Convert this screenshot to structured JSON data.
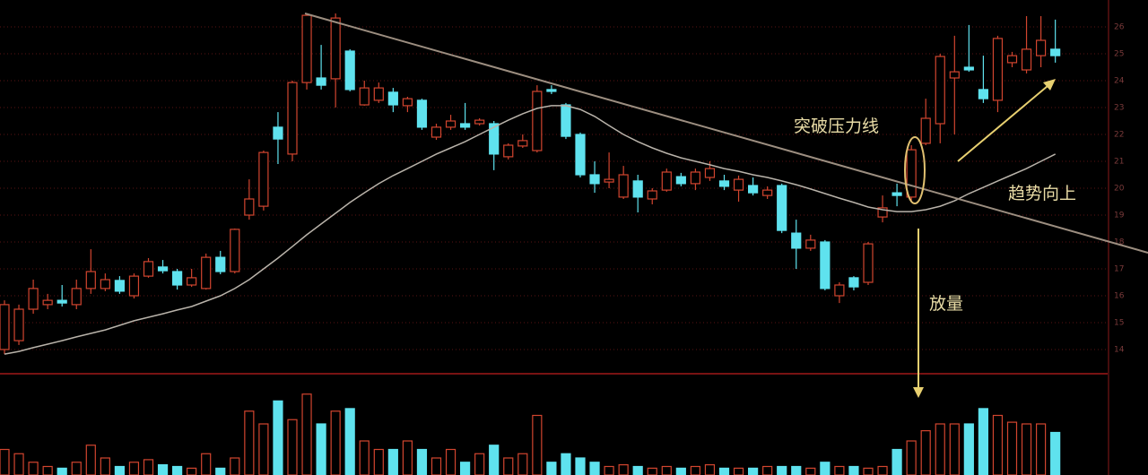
{
  "chart_data": {
    "type": "candlestick",
    "open": [
      14,
      14.33,
      15.5,
      15.67,
      15.83,
      15.67,
      16.27,
      16.27,
      16.57,
      16,
      16.73,
      17.07,
      16.9,
      16.4,
      16.27,
      17.43,
      16.9,
      19,
      19.33,
      22.27,
      21.27,
      23.93,
      24.1,
      24.07,
      25.1,
      23.1,
      23.27,
      23.57,
      23.07,
      23.27,
      21.9,
      22.27,
      22.4,
      22.4,
      22.4,
      21.17,
      21.57,
      21.4,
      23.67,
      23.1,
      22,
      20.5,
      20.23,
      19.67,
      20.27,
      19.6,
      19.93,
      20.43,
      20.17,
      20.4,
      20.27,
      19.93,
      20.1,
      19.73,
      20.1,
      18.33,
      17.77,
      18,
      16,
      16.67,
      16.5,
      18.93,
      19.83,
      19.67,
      21.67,
      22.4,
      24.1,
      24.5,
      23.67,
      23.27,
      24.67,
      24.4,
      24.93,
      25.17
    ],
    "high": [
      15.83,
      15.67,
      16.6,
      16.07,
      16.4,
      16.6,
      17.73,
      16.83,
      16.73,
      16.83,
      17.4,
      17.33,
      17,
      17,
      17.57,
      17.67,
      18.5,
      20.33,
      21.4,
      22.83,
      24,
      26.5,
      25.33,
      26.5,
      25.17,
      24,
      23.93,
      23.73,
      23.4,
      23.33,
      22.4,
      22.73,
      23.17,
      22.6,
      22.5,
      21.67,
      22,
      23.83,
      23.83,
      23.17,
      22.07,
      21,
      21.33,
      20.83,
      20.5,
      20,
      20.73,
      20.57,
      20.73,
      21,
      20.5,
      20.47,
      20.4,
      20.07,
      20.17,
      18.83,
      18.27,
      18.07,
      16.5,
      16.73,
      18,
      19.73,
      20.17,
      21.6,
      23.33,
      25,
      25.67,
      26.07,
      24.93,
      25.67,
      25.07,
      26.4,
      26.4,
      26.27
    ],
    "low": [
      13.83,
      14.17,
      15.33,
      15.5,
      15.6,
      15.5,
      16.07,
      16.17,
      16.07,
      15.9,
      16.67,
      16.83,
      16.23,
      16.33,
      16.23,
      16.8,
      16.83,
      18.83,
      19.17,
      20.9,
      21,
      23.67,
      23.67,
      23,
      23.6,
      23.07,
      23.17,
      22.83,
      22.83,
      22.17,
      21.8,
      22.17,
      22.17,
      22.33,
      20.67,
      21.07,
      21.5,
      21.33,
      23.5,
      21.83,
      20.4,
      19.83,
      20,
      19.6,
      19.1,
      19.4,
      19.87,
      20.07,
      19.93,
      20.27,
      19.93,
      19.5,
      19.73,
      19.6,
      18.33,
      17,
      17.67,
      16.2,
      15.73,
      16.2,
      16.4,
      18.73,
      19.33,
      19.5,
      21.6,
      21.67,
      22,
      24.33,
      23.17,
      22.83,
      24.5,
      24.27,
      24.5,
      24.67
    ],
    "close": [
      15.67,
      15.5,
      16.27,
      15.83,
      15.73,
      16.27,
      16.9,
      16.6,
      16.17,
      16.73,
      17.27,
      16.93,
      16.4,
      16.67,
      17.43,
      16.9,
      18.47,
      19.6,
      21.33,
      21.83,
      23.93,
      26.43,
      23.83,
      26.33,
      23.67,
      23.73,
      23.73,
      23.1,
      23.33,
      22.27,
      22.27,
      22.5,
      22.27,
      22.53,
      21.27,
      21.6,
      21.77,
      23.6,
      23.6,
      21.93,
      20.5,
      20.17,
      20.33,
      20.5,
      19.67,
      19.9,
      20.6,
      20.17,
      20.6,
      20.73,
      20.07,
      20.33,
      19.83,
      19.93,
      18.43,
      17.77,
      18.07,
      16.27,
      16.4,
      16.33,
      17.93,
      19.27,
      19.73,
      21.43,
      22.6,
      24.9,
      24.33,
      24.4,
      23.33,
      25.57,
      24.93,
      25.17,
      25.5,
      24.93
    ],
    "ma": [
      13.83,
      13.93,
      14.07,
      14.2,
      14.33,
      14.47,
      14.6,
      14.73,
      14.9,
      15.07,
      15.2,
      15.33,
      15.47,
      15.6,
      15.8,
      16,
      16.27,
      16.6,
      17,
      17.4,
      17.83,
      18.27,
      18.67,
      19.07,
      19.47,
      19.83,
      20.17,
      20.47,
      20.73,
      21,
      21.27,
      21.5,
      21.73,
      22,
      22.27,
      22.53,
      22.77,
      22.97,
      23.07,
      23.07,
      22.93,
      22.67,
      22.33,
      22,
      21.73,
      21.5,
      21.3,
      21.13,
      21,
      20.87,
      20.73,
      20.63,
      20.5,
      20.4,
      20.27,
      20.13,
      19.97,
      19.8,
      19.63,
      19.47,
      19.3,
      19.2,
      19.13,
      19.13,
      19.2,
      19.33,
      19.53,
      19.8,
      20.03,
      20.27,
      20.5,
      20.73,
      21,
      21.27
    ],
    "volume": [
      30,
      25,
      15,
      10,
      8,
      15,
      35,
      20,
      10,
      15,
      18,
      12,
      10,
      8,
      25,
      8,
      20,
      75,
      60,
      87,
      65,
      95,
      60,
      75,
      78,
      40,
      30,
      30,
      40,
      30,
      20,
      30,
      15,
      25,
      35,
      20,
      25,
      70,
      15,
      25,
      20,
      15,
      10,
      12,
      10,
      8,
      10,
      8,
      10,
      12,
      8,
      8,
      8,
      10,
      10,
      10,
      8,
      15,
      10,
      10,
      8,
      10,
      30,
      40,
      52,
      60,
      60,
      60,
      78,
      70,
      62,
      60,
      60,
      50
    ],
    "ylim": [
      13,
      27
    ],
    "yticks": [
      14,
      15,
      16,
      17,
      18,
      19,
      20,
      21,
      22,
      23,
      24,
      25,
      26
    ],
    "y2lim": [
      0,
      100
    ],
    "up_color": "#d2452f",
    "down_color": "#5fe2ee",
    "ma_color": "#b9b3aa",
    "grid": true,
    "annotations": [
      "突破压力线",
      "趋势向上",
      "放量"
    ]
  }
}
